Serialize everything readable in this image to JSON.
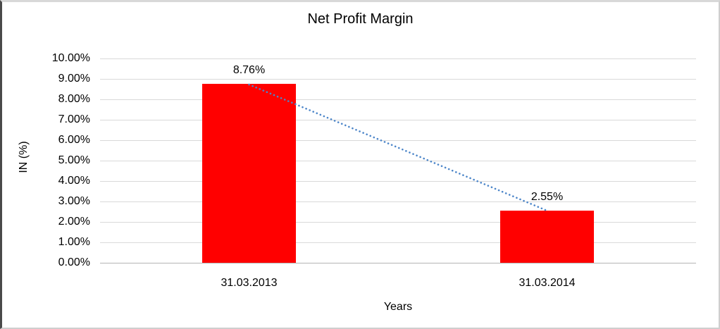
{
  "chart_data": {
    "type": "bar",
    "title": "Net Profit Margin",
    "xlabel": "Years",
    "ylabel": "IN (%)",
    "categories": [
      "31.03.2013",
      "31.03.2014"
    ],
    "values": [
      8.76,
      2.55
    ],
    "data_labels": [
      "8.76%",
      "2.55%"
    ],
    "ylim": [
      0,
      10
    ],
    "ytick_step": 1,
    "ytick_labels": [
      "0.00%",
      "1.00%",
      "2.00%",
      "3.00%",
      "4.00%",
      "5.00%",
      "6.00%",
      "7.00%",
      "8.00%",
      "9.00%",
      "10.00%"
    ],
    "grid": true,
    "legend": "none",
    "bar_color": "#ff0000",
    "trendline": {
      "type": "linear",
      "style": "dotted",
      "color": "#4d86c9"
    }
  }
}
